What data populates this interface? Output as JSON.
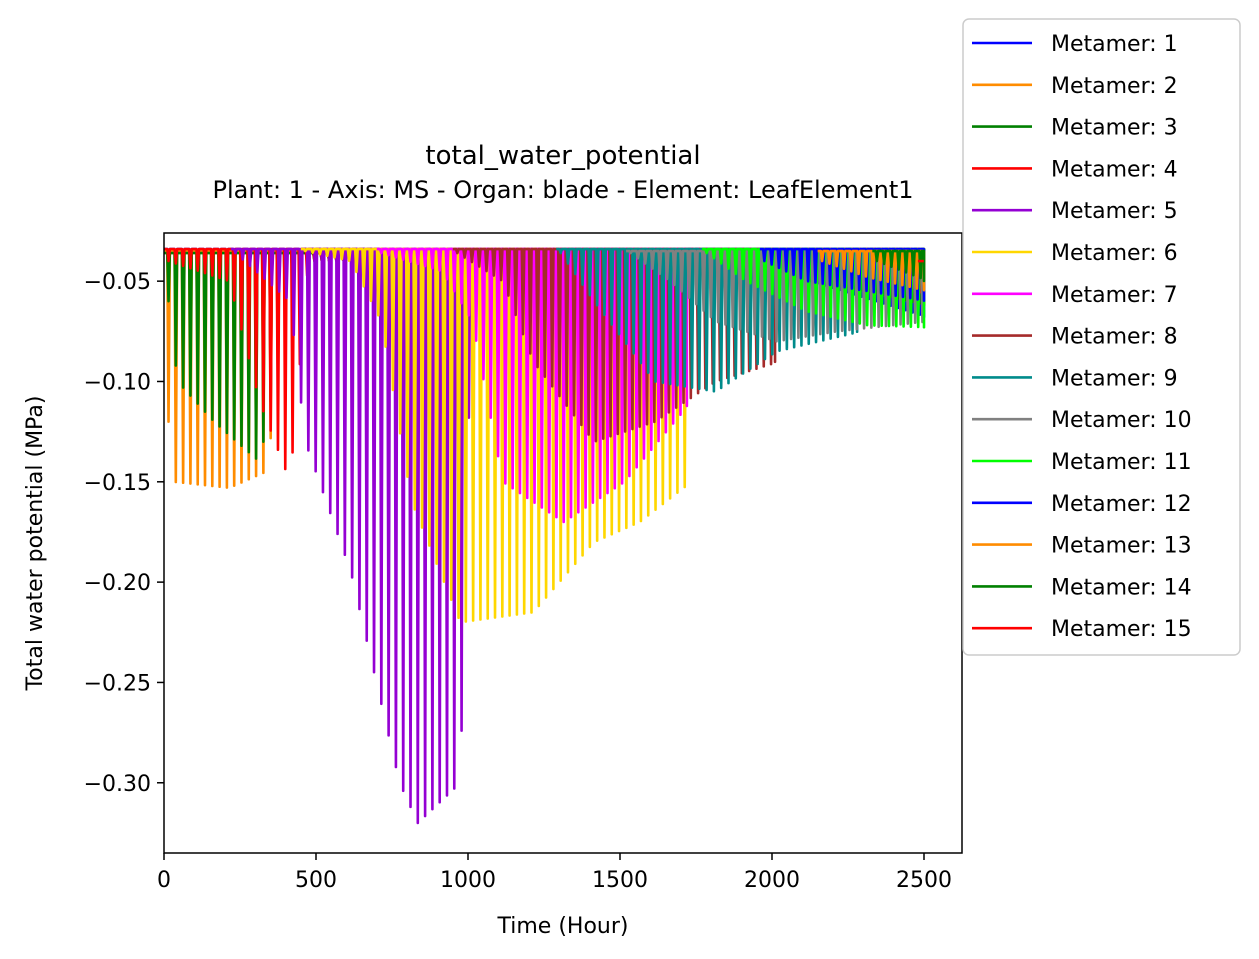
{
  "chart_data": {
    "type": "line",
    "title": "total_water_potential",
    "subtitle": "Plant: 1 - Axis: MS - Organ: blade - Element: LeafElement1",
    "xlabel": "Time (Hour)",
    "ylabel": "Total water potential (MPa)",
    "xlim": [
      0,
      2625
    ],
    "ylim": [
      -0.335,
      -0.026
    ],
    "xticks": [
      0,
      500,
      1000,
      1500,
      2000,
      2500
    ],
    "xtick_labels": [
      "0",
      "500",
      "1000",
      "1500",
      "2000",
      "2500"
    ],
    "yticks": [
      -0.05,
      -0.1,
      -0.15,
      -0.2,
      -0.25,
      -0.3
    ],
    "ytick_labels": [
      "−0.05",
      "−0.10",
      "−0.15",
      "−0.20",
      "−0.25",
      "−0.30"
    ],
    "period_hours": 24,
    "grid": false,
    "legend_position": "upper-right, outside plot",
    "series": [
      {
        "name": "Metamer: 1",
        "color": "#0000ff",
        "start": 0,
        "end": 2500,
        "day_peak": -0.034,
        "envelope": [
          [
            0,
            -0.038
          ],
          [
            400,
            -0.04
          ],
          [
            700,
            -0.037
          ],
          [
            2500,
            -0.036
          ]
        ],
        "late_dip": [
          [
            1900,
            -0.04
          ],
          [
            2500,
            -0.068
          ]
        ]
      },
      {
        "name": "Metamer: 2",
        "color": "#ff8c00",
        "start": 0,
        "end": 2500,
        "day_peak": -0.035,
        "envelope": [
          [
            0,
            -0.12
          ],
          [
            20,
            -0.15
          ],
          [
            200,
            -0.153
          ],
          [
            320,
            -0.145
          ],
          [
            420,
            -0.04
          ],
          [
            2500,
            -0.036
          ]
        ],
        "late_dip": [
          [
            2000,
            -0.045
          ],
          [
            2500,
            -0.062
          ]
        ]
      },
      {
        "name": "Metamer: 3",
        "color": "#008000",
        "start": 0,
        "end": 2500,
        "day_peak": -0.036,
        "envelope": [
          [
            0,
            -0.06
          ],
          [
            30,
            -0.1
          ],
          [
            150,
            -0.12
          ],
          [
            300,
            -0.14
          ],
          [
            420,
            -0.04
          ],
          [
            2500,
            -0.036
          ]
        ],
        "late_dip": [
          [
            2000,
            -0.045
          ],
          [
            2500,
            -0.062
          ]
        ]
      },
      {
        "name": "Metamer: 4",
        "color": "#ff0000",
        "start": 0,
        "end": 2500,
        "day_peak": -0.034,
        "envelope": [
          [
            0,
            -0.04
          ],
          [
            200,
            -0.05
          ],
          [
            300,
            -0.11
          ],
          [
            400,
            -0.15
          ],
          [
            460,
            -0.04
          ],
          [
            2500,
            -0.036
          ]
        ],
        "late_dip": [
          [
            2300,
            -0.04
          ],
          [
            2500,
            -0.058
          ]
        ]
      },
      {
        "name": "Metamer: 5",
        "color": "#9400d3",
        "start": 220,
        "end": 2500,
        "day_peak": -0.034,
        "envelope": [
          [
            220,
            -0.036
          ],
          [
            400,
            -0.06
          ],
          [
            450,
            -0.13
          ],
          [
            600,
            -0.195
          ],
          [
            760,
            -0.3
          ],
          [
            820,
            -0.32
          ],
          [
            960,
            -0.3
          ],
          [
            1000,
            -0.04
          ],
          [
            2500,
            -0.036
          ]
        ],
        "late_dip": []
      },
      {
        "name": "Metamer: 6",
        "color": "#ffd700",
        "start": 450,
        "end": 1720,
        "day_peak": -0.034,
        "envelope": [
          [
            450,
            -0.035
          ],
          [
            600,
            -0.04
          ],
          [
            700,
            -0.07
          ],
          [
            800,
            -0.16
          ],
          [
            960,
            -0.22
          ],
          [
            1200,
            -0.215
          ],
          [
            1400,
            -0.18
          ],
          [
            1550,
            -0.17
          ],
          [
            1720,
            -0.15
          ]
        ],
        "late_dip": []
      },
      {
        "name": "Metamer: 7",
        "color": "#ff00ff",
        "start": 700,
        "end": 1720,
        "day_peak": -0.034,
        "envelope": [
          [
            700,
            -0.036
          ],
          [
            900,
            -0.045
          ],
          [
            1000,
            -0.07
          ],
          [
            1100,
            -0.15
          ],
          [
            1300,
            -0.17
          ],
          [
            1500,
            -0.15
          ],
          [
            1720,
            -0.11
          ]
        ],
        "late_dip": []
      },
      {
        "name": "Metamer: 8",
        "color": "#a52a2a",
        "start": 950,
        "end": 2010,
        "day_peak": -0.034,
        "envelope": [
          [
            950,
            -0.036
          ],
          [
            1100,
            -0.05
          ],
          [
            1200,
            -0.09
          ],
          [
            1400,
            -0.13
          ],
          [
            1600,
            -0.12
          ],
          [
            1800,
            -0.1
          ],
          [
            2010,
            -0.09
          ]
        ],
        "late_dip": []
      },
      {
        "name": "Metamer: 9",
        "color": "#008b8b",
        "start": 1290,
        "end": 2280,
        "day_peak": -0.034,
        "envelope": [
          [
            1290,
            -0.036
          ],
          [
            1400,
            -0.06
          ],
          [
            1600,
            -0.1
          ],
          [
            1800,
            -0.105
          ],
          [
            2000,
            -0.085
          ],
          [
            2280,
            -0.075
          ]
        ],
        "late_dip": []
      },
      {
        "name": "Metamer: 10",
        "color": "#808080",
        "start": 1520,
        "end": 2500,
        "day_peak": -0.035,
        "envelope": [
          [
            1520,
            -0.036
          ],
          [
            1650,
            -0.05
          ],
          [
            1800,
            -0.07
          ],
          [
            2000,
            -0.08
          ],
          [
            2200,
            -0.075
          ],
          [
            2500,
            -0.07
          ]
        ],
        "late_dip": []
      },
      {
        "name": "Metamer: 11",
        "color": "#00ff00",
        "start": 1770,
        "end": 2500,
        "day_peak": -0.034,
        "envelope": [
          [
            1770,
            -0.036
          ],
          [
            1900,
            -0.05
          ],
          [
            2100,
            -0.065
          ],
          [
            2300,
            -0.072
          ],
          [
            2500,
            -0.073
          ]
        ],
        "late_dip": []
      },
      {
        "name": "Metamer: 12",
        "color": "#0000ff",
        "start": 1960,
        "end": 2500,
        "day_peak": -0.034,
        "envelope": [
          [
            1960,
            -0.04
          ],
          [
            2100,
            -0.05
          ],
          [
            2300,
            -0.055
          ],
          [
            2500,
            -0.06
          ]
        ],
        "late_dip": []
      },
      {
        "name": "Metamer: 13",
        "color": "#ff8c00",
        "start": 2150,
        "end": 2500,
        "day_peak": -0.035,
        "envelope": [
          [
            2150,
            -0.04
          ],
          [
            2300,
            -0.048
          ],
          [
            2500,
            -0.055
          ]
        ],
        "late_dip": []
      },
      {
        "name": "Metamer: 14",
        "color": "#008000",
        "start": 2330,
        "end": 2500,
        "day_peak": -0.035,
        "envelope": [
          [
            2330,
            -0.04
          ],
          [
            2500,
            -0.05
          ]
        ],
        "late_dip": []
      },
      {
        "name": "Metamer: 15",
        "color": "#ff0000",
        "start": 2480,
        "end": 2500,
        "day_peak": -0.04,
        "envelope": [
          [
            2480,
            -0.04
          ],
          [
            2500,
            -0.055
          ]
        ],
        "late_dip": []
      }
    ]
  }
}
